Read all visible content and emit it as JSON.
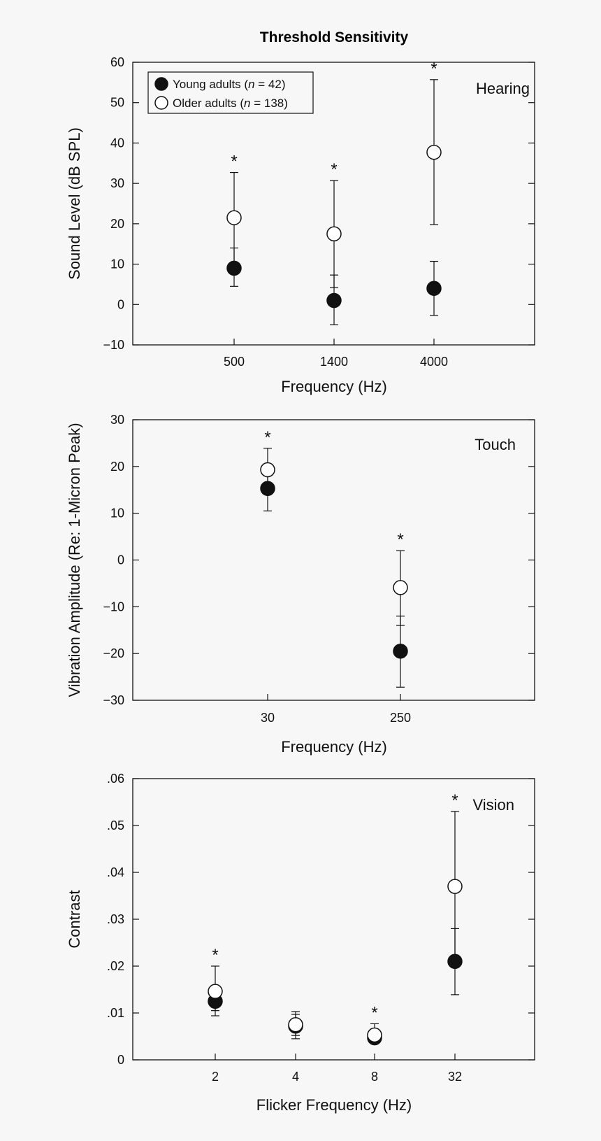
{
  "title": "Threshold Sensitivity",
  "legend": {
    "placement": "top-left",
    "young": "Young adults (n = 42)",
    "young_parts": [
      "Young adults (",
      "n",
      " = 42)"
    ],
    "older": "Older adults (n = 138)",
    "older_parts": [
      "Older adults (",
      "n",
      " = 138)"
    ]
  },
  "chart_data": [
    {
      "type": "scatter",
      "panel_label": "Hearing",
      "xlabel": "Frequency (Hz)",
      "ylabel": "Sound Level (dB SPL)",
      "ylim": [
        -10,
        60
      ],
      "yticks": [
        -10,
        0,
        10,
        20,
        30,
        40,
        50,
        60
      ],
      "ytick_labels": [
        "−10",
        "0",
        "10",
        "20",
        "30",
        "40",
        "50",
        "60"
      ],
      "categories": [
        "500",
        "1400",
        "4000"
      ],
      "grid": false,
      "series": [
        {
          "name": "Young adults (n = 42)",
          "marker": "filled",
          "values": [
            9,
            1,
            4
          ],
          "err_low": [
            4.5,
            -5,
            -2.7
          ],
          "err_high": [
            14,
            7.3,
            10.7
          ]
        },
        {
          "name": "Older adults (n = 138)",
          "marker": "open",
          "values": [
            21.5,
            17.5,
            37.7
          ],
          "err_low": [
            10.3,
            4.2,
            19.8
          ],
          "err_high": [
            32.7,
            30.7,
            55.7
          ]
        }
      ],
      "significant": [
        "*",
        "*",
        "*"
      ]
    },
    {
      "type": "scatter",
      "panel_label": "Touch",
      "xlabel": "Frequency (Hz)",
      "ylabel": "Vibration Amplitude (Re: 1-Micron Peak)",
      "ylim": [
        -30,
        30
      ],
      "yticks": [
        -30,
        -20,
        -10,
        0,
        10,
        20,
        30
      ],
      "ytick_labels": [
        "−30",
        "−20",
        "−10",
        "0",
        "10",
        "20",
        "30"
      ],
      "categories": [
        "30",
        "250"
      ],
      "grid": false,
      "series": [
        {
          "name": "Young adults (n = 42)",
          "marker": "filled",
          "values": [
            15.3,
            -19.5
          ],
          "err_low": [
            10.5,
            -27.2
          ],
          "err_high": [
            20,
            -12
          ]
        },
        {
          "name": "Older adults (n = 138)",
          "marker": "open",
          "values": [
            19.3,
            -5.9
          ],
          "err_low": [
            15.3,
            -14
          ],
          "err_high": [
            23.9,
            2
          ]
        }
      ],
      "significant": [
        "*",
        "*"
      ]
    },
    {
      "type": "scatter",
      "panel_label": "Vision",
      "xlabel": "Flicker Frequency (Hz)",
      "ylabel": "Contrast",
      "ylim": [
        0,
        0.06
      ],
      "yticks": [
        0,
        0.01,
        0.02,
        0.03,
        0.04,
        0.05,
        0.06
      ],
      "ytick_labels": [
        "0",
        ".01",
        ".02",
        ".03",
        ".04",
        ".05",
        ".06"
      ],
      "categories": [
        "2",
        "4",
        "8",
        "32"
      ],
      "grid": false,
      "series": [
        {
          "name": "Young adults (n = 42)",
          "marker": "filled",
          "values": [
            0.0125,
            0.0072,
            0.0047,
            0.021
          ],
          "err_low": [
            0.0094,
            0.0045,
            0.0035,
            0.0139
          ],
          "err_high": [
            0.0155,
            0.0097,
            0.0058,
            0.028
          ]
        },
        {
          "name": "Older adults (n = 138)",
          "marker": "open",
          "values": [
            0.0146,
            0.0075,
            0.0053,
            0.037
          ],
          "err_low": [
            0.0105,
            0.0052,
            0.0038,
            0.021
          ],
          "err_high": [
            0.02,
            0.0103,
            0.0077,
            0.053
          ]
        }
      ],
      "significant": [
        "*",
        "",
        "*",
        "*"
      ]
    }
  ]
}
